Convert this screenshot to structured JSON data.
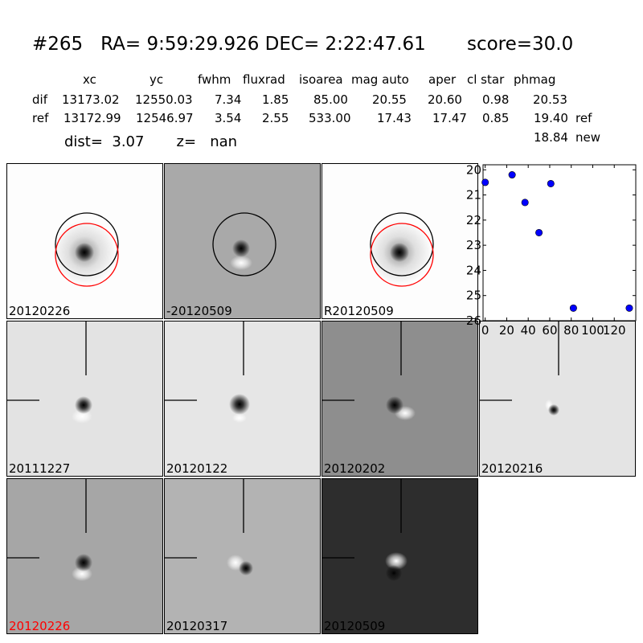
{
  "title": "#265   RA= 9:59:29.926 DEC= 2:22:47.61       score=30.0",
  "table": {
    "headers": [
      "xc",
      "yc",
      "fwhm",
      "fluxrad",
      "isoarea",
      "mag auto",
      "aper",
      "cl star",
      "phmag"
    ],
    "rows": [
      {
        "label": "dif",
        "values": [
          "13173.02",
          "12550.03",
          "7.34",
          "1.85",
          "85.00",
          "20.55",
          "20.60",
          "0.98",
          "20.53"
        ],
        "extra": ""
      },
      {
        "label": "ref",
        "values": [
          "13172.99",
          "12546.97",
          "3.54",
          "2.55",
          "533.00",
          "17.43",
          "17.47",
          "0.85",
          "19.40"
        ],
        "extra": "ref"
      }
    ],
    "new_value": "18.84",
    "new_label": "new"
  },
  "dist_line": "dist=  3.07       z=   nan",
  "panels": [
    {
      "label": "20120226",
      "label_color": "#000000",
      "bg": "#fdfdfd",
      "type": "stamp-circles",
      "circles": [
        "black",
        "red"
      ],
      "blob": "psf"
    },
    {
      "label": "-20120509",
      "label_color": "#000000",
      "bg": "#a9a9a9",
      "type": "stamp-circles",
      "circles": [
        "black"
      ],
      "blob": "dipole"
    },
    {
      "label": "R20120509",
      "label_color": "#000000",
      "bg": "#fdfdfd",
      "type": "stamp-circles",
      "circles": [
        "black",
        "red"
      ],
      "blob": "psf-small"
    },
    {
      "label": "20111227",
      "label_color": "#000000",
      "bg": "#e3e3e3",
      "type": "crosshair",
      "blob": "dipole"
    },
    {
      "label": "20120122",
      "label_color": "#000000",
      "bg": "#e6e6e6",
      "type": "crosshair",
      "blob": "dark"
    },
    {
      "label": "20120202",
      "label_color": "#000000",
      "bg": "#8e8e8e",
      "type": "crosshair",
      "blob": "dipole-strong"
    },
    {
      "label": "20120216",
      "label_color": "#000000",
      "bg": "#e4e4e4",
      "type": "crosshair",
      "blob": "small-dipole"
    },
    {
      "label": "20120226",
      "label_color": "#ff0000",
      "bg": "#a6a6a6",
      "type": "crosshair",
      "blob": "dipole"
    },
    {
      "label": "20120317",
      "label_color": "#000000",
      "bg": "#b3b3b3",
      "type": "crosshair",
      "blob": "reverse"
    },
    {
      "label": "20120509",
      "label_color": "#000000",
      "bg": "#2d2d2d",
      "type": "crosshair",
      "blob": "bright-dark"
    }
  ],
  "chart_data": {
    "type": "scatter",
    "x": [
      0,
      25,
      37,
      50,
      61,
      82,
      134
    ],
    "y": [
      20.5,
      20.2,
      21.3,
      22.5,
      20.55,
      25.5,
      25.5
    ],
    "xlim": [
      -2,
      140
    ],
    "ylim": [
      26,
      19.8
    ],
    "xticks": [
      "0",
      "20",
      "40",
      "60",
      "80",
      "100",
      "120"
    ],
    "yticks": [
      "20",
      "21",
      "22",
      "23",
      "24",
      "25",
      "26"
    ],
    "marker_color": "#0000ff"
  }
}
